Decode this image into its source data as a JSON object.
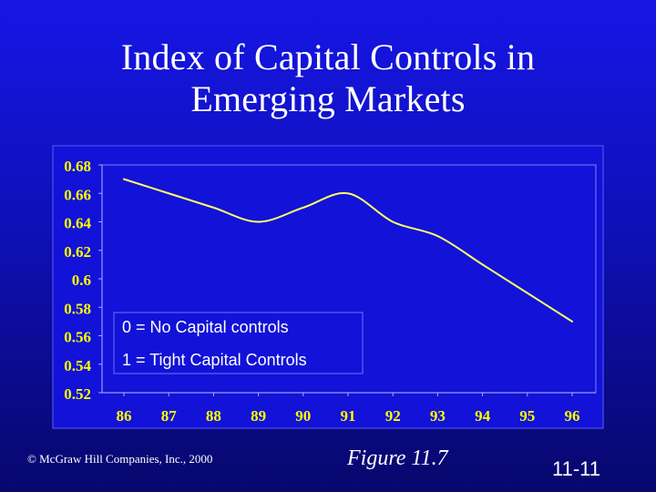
{
  "slide": {
    "title_line_1": "Index of Capital Controls in",
    "title_line_2": "Emerging Markets",
    "copyright": "© McGraw Hill Companies, Inc., 2000",
    "figure_label": "Figure 11.7",
    "page_number": "11-11"
  },
  "colors": {
    "background_top": "#1616e6",
    "background_bottom": "#07076d",
    "plot_fill": "#1212d8",
    "line": "#ffff66",
    "text": "#ffffff",
    "tick_text": "#ffff00"
  },
  "chart_data": {
    "type": "line",
    "title": "",
    "xlabel": "",
    "ylabel": "",
    "x": [
      "86",
      "87",
      "88",
      "89",
      "90",
      "91",
      "92",
      "93",
      "94",
      "95",
      "96"
    ],
    "series": [
      {
        "values": [
          0.67,
          0.66,
          0.65,
          0.64,
          0.65,
          0.66,
          0.64,
          0.63,
          0.61,
          0.59,
          0.57
        ]
      }
    ],
    "y_ticks": [
      "0.68",
      "0.66",
      "0.64",
      "0.62",
      "0.6",
      "0.58",
      "0.56",
      "0.54",
      "0.52"
    ],
    "ylim": [
      0.52,
      0.68
    ],
    "legend_text_1": "0 = No Capital controls",
    "legend_text_2": "1 = Tight Capital Controls",
    "grid": false
  }
}
